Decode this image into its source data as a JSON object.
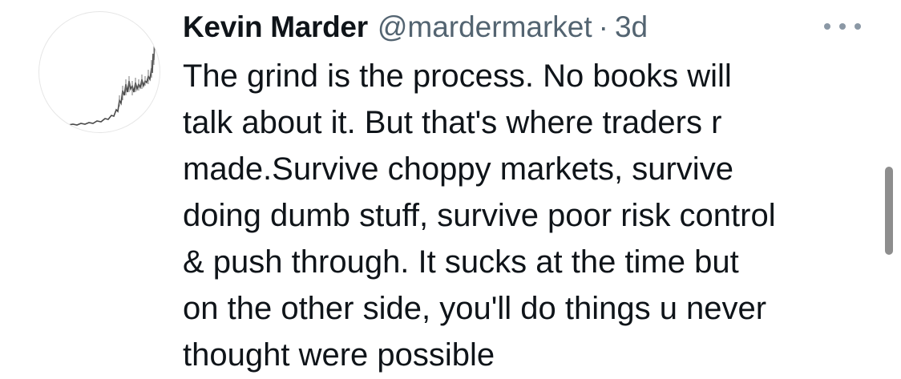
{
  "tweet": {
    "display_name": "Kevin Marder",
    "handle": "@mardermarket",
    "separator": "·",
    "time": "3d",
    "avatar_icon": "stock-chart-icon",
    "more_icon": "more-options-icon",
    "text_lines": [
      "The grind is the process. No books will",
      "talk about it. But that's where traders r",
      "made.Survive choppy markets, survive",
      "doing dumb stuff, survive poor risk control",
      "& push through. It sucks at the time but",
      "on the other side, you'll do things u never",
      "thought were possible"
    ]
  },
  "colors": {
    "text": "#0f1419",
    "secondary": "#536471",
    "scrollbar": "#8e8e8e"
  }
}
